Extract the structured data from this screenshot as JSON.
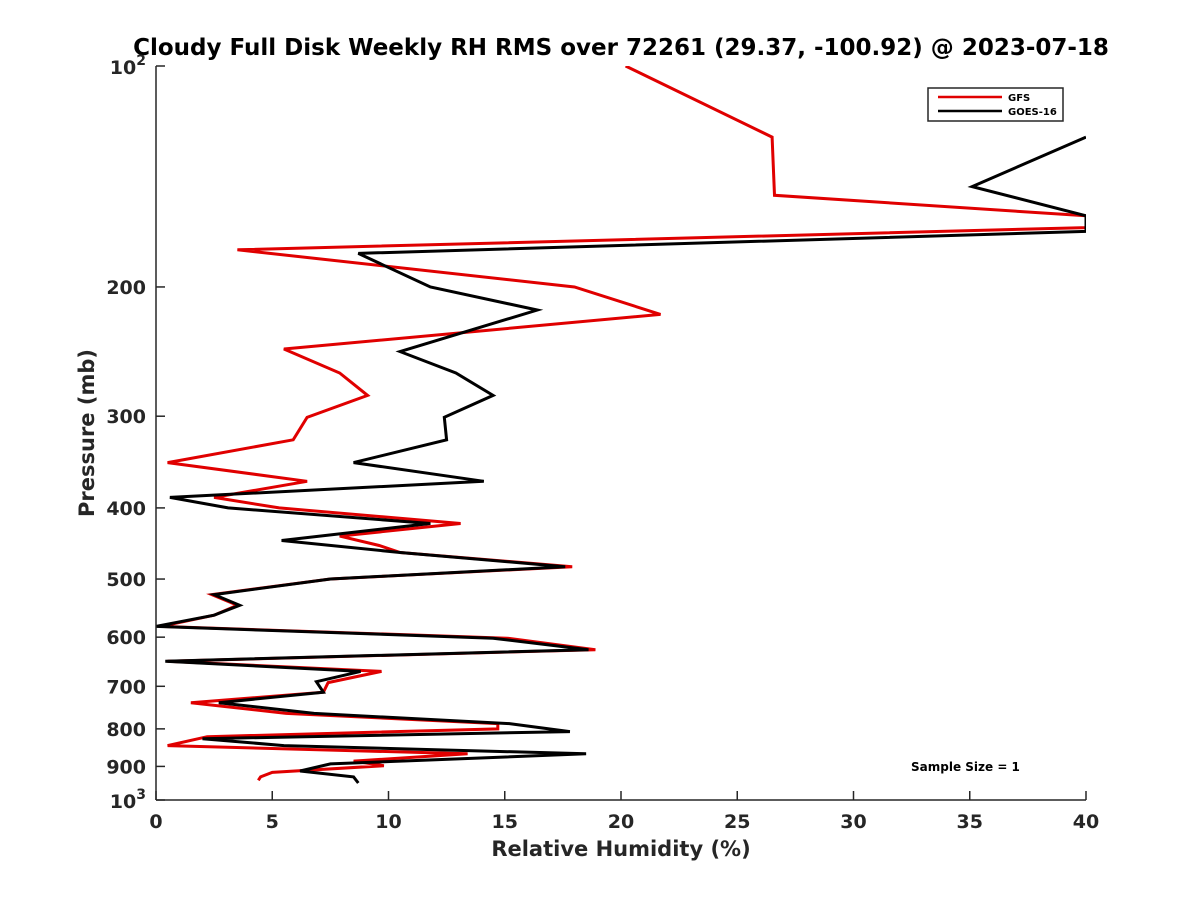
{
  "chart_data": {
    "type": "line",
    "title": "Cloudy Full Disk Weekly RH RMS over 72261 (29.37, -100.92) @ 2023-07-18",
    "xlabel": "Relative Humidity (%)",
    "ylabel": "Pressure (mb)",
    "xlim": [
      0,
      40
    ],
    "ylim": [
      100,
      1000
    ],
    "yscale": "log",
    "yreversed": true,
    "xticks": [
      0,
      5,
      10,
      15,
      20,
      25,
      30,
      35,
      40
    ],
    "yticks": [
      {
        "value": 100,
        "base": "10",
        "exp": "2"
      },
      {
        "value": 200,
        "label": "200"
      },
      {
        "value": 300,
        "label": "300"
      },
      {
        "value": 400,
        "label": "400"
      },
      {
        "value": 500,
        "label": "500"
      },
      {
        "value": 600,
        "label": "600"
      },
      {
        "value": 700,
        "label": "700"
      },
      {
        "value": 800,
        "label": "800"
      },
      {
        "value": 900,
        "label": "900"
      },
      {
        "value": 1000,
        "base": "10",
        "exp": "3"
      }
    ],
    "grid": false,
    "legend_position": "top-right",
    "annotation": "Sample Size = 1",
    "series": [
      {
        "name": "GFS",
        "color": "#e00000",
        "points": [
          [
            20.2,
            100
          ],
          [
            26.5,
            125
          ],
          [
            26.6,
            150
          ],
          [
            40,
            160
          ],
          [
            40,
            166
          ],
          [
            3.5,
            178
          ],
          [
            18,
            200
          ],
          [
            21.7,
            218
          ],
          [
            5.5,
            243
          ],
          [
            7.9,
            262
          ],
          [
            9.1,
            281
          ],
          [
            6.5,
            301
          ],
          [
            5.9,
            323
          ],
          [
            0.5,
            347
          ],
          [
            6.5,
            368
          ],
          [
            2.5,
            387
          ],
          [
            5.3,
            400
          ],
          [
            13.1,
            420
          ],
          [
            7.9,
            437
          ],
          [
            9.6,
            450
          ],
          [
            10.5,
            460
          ],
          [
            17.9,
            481
          ],
          [
            7.5,
            500
          ],
          [
            2.4,
            525
          ],
          [
            3.5,
            543
          ],
          [
            2.5,
            560
          ],
          [
            0.2,
            580
          ],
          [
            15.1,
            602
          ],
          [
            18.9,
            624
          ],
          [
            0.5,
            647
          ],
          [
            9.7,
            668
          ],
          [
            7.4,
            692
          ],
          [
            7.2,
            713
          ],
          [
            1.5,
            737
          ],
          [
            5.6,
            762
          ],
          [
            14.7,
            787
          ],
          [
            14.7,
            800
          ],
          [
            2.2,
            820
          ],
          [
            0.5,
            843
          ],
          [
            13.4,
            865
          ],
          [
            8.5,
            885
          ],
          [
            9.8,
            898
          ],
          [
            5,
            917
          ],
          [
            4.5,
            930
          ],
          [
            4.4,
            940
          ]
        ]
      },
      {
        "name": "GOES-16",
        "color": "#000000",
        "points": [
          [
            40,
            125
          ],
          [
            35.1,
            146
          ],
          [
            40,
            160
          ],
          [
            40,
            168
          ],
          [
            8.7,
            180
          ],
          [
            11.8,
            200
          ],
          [
            16.4,
            215
          ],
          [
            10.5,
            245
          ],
          [
            12.9,
            262
          ],
          [
            14.5,
            281
          ],
          [
            12.4,
            301
          ],
          [
            12.5,
            323
          ],
          [
            8.5,
            347
          ],
          [
            14.1,
            368
          ],
          [
            0.6,
            387
          ],
          [
            3.1,
            400
          ],
          [
            11.8,
            420
          ],
          [
            5.4,
            443
          ],
          [
            10.5,
            460
          ],
          [
            17.6,
            481
          ],
          [
            7.5,
            500
          ],
          [
            2.5,
            525
          ],
          [
            3.6,
            543
          ],
          [
            2.5,
            560
          ],
          [
            0,
            580
          ],
          [
            14.5,
            602
          ],
          [
            18.6,
            624
          ],
          [
            0.4,
            647
          ],
          [
            8.8,
            668
          ],
          [
            6.9,
            690
          ],
          [
            7.2,
            713
          ],
          [
            2.7,
            737
          ],
          [
            6.8,
            762
          ],
          [
            15.2,
            787
          ],
          [
            17.8,
            807
          ],
          [
            2,
            825
          ],
          [
            5.5,
            843
          ],
          [
            18.5,
            865
          ],
          [
            7.5,
            893
          ],
          [
            6.2,
            913
          ],
          [
            8.5,
            930
          ],
          [
            8.7,
            948
          ]
        ]
      }
    ]
  }
}
